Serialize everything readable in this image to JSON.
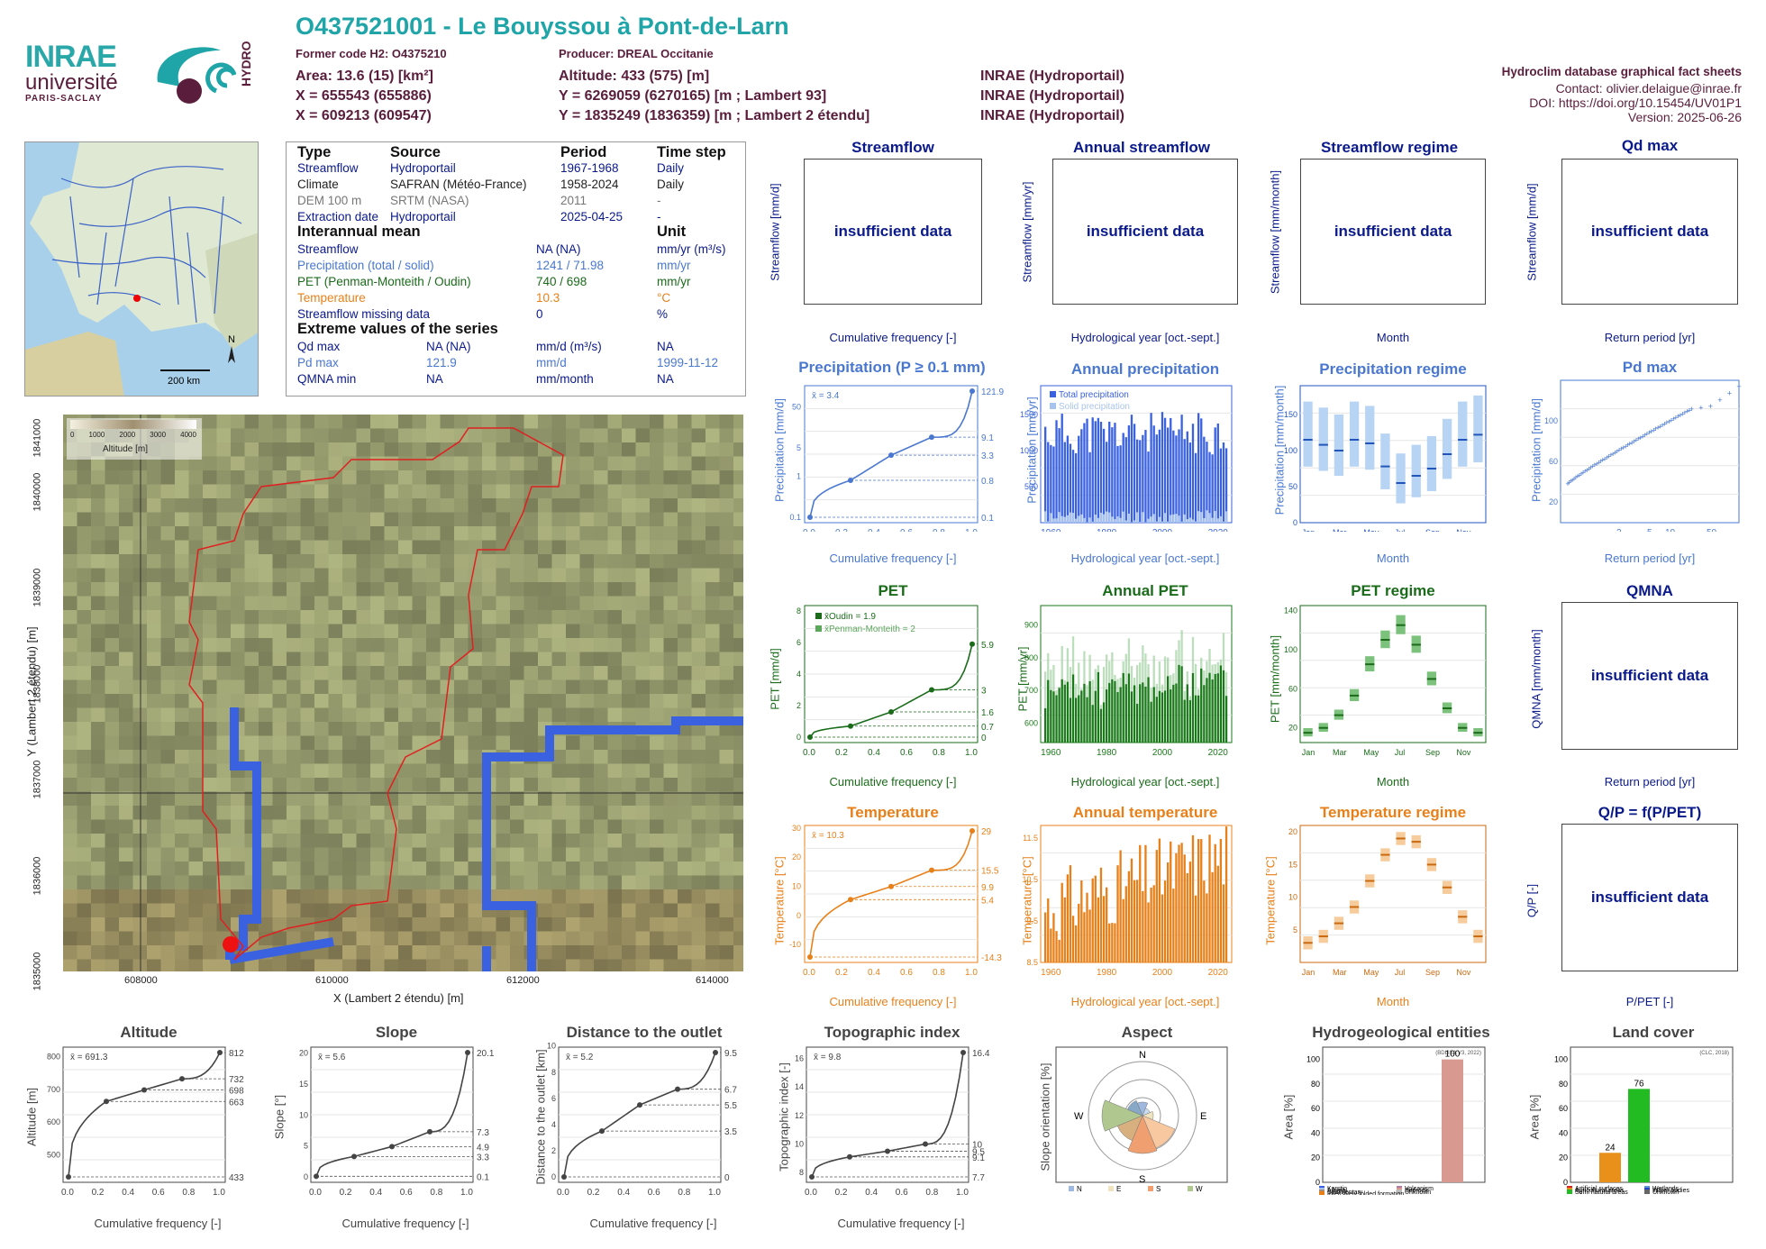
{
  "header": {
    "title": "O437521001 - Le Bouyssou à Pont-de-Larn",
    "former_code": "Former code H2: O4375210",
    "producer": "Producer: DREAL Occitanie",
    "area": "Area: 13.6 (15) [km²]",
    "x": "X = 655543 (655886)",
    "x2": "X = 609213 (609547)",
    "altitude": "Altitude: 433 (575) [m]",
    "y": "Y = 6269059 (6270165) [m ; Lambert 93]",
    "y2": "Y = 1835249 (1836359) [m ; Lambert 2 étendu]",
    "src1": "INRAE (Hydroportail)",
    "src2": "INRAE (Hydroportail)",
    "src3": "INRAE (Hydroportail)",
    "db": "Hydroclim database graphical fact sheets",
    "contact": "Contact: olivier.delaigue@inrae.fr",
    "doi": "DOI: https://doi.org/10.15454/UV01P1",
    "version": "Version: 2025-06-26"
  },
  "logos": {
    "inrae": "INRAE",
    "universite": "université",
    "paris": "PARIS-SACLAY",
    "hydro": "HYDRO"
  },
  "minimap": {
    "scale": "200 km",
    "north": "N"
  },
  "info": {
    "head": [
      "Type",
      "Source",
      "Period",
      "Time step"
    ],
    "rows": [
      [
        "Streamflow",
        "Hydroportail",
        "1967-1968",
        "Daily"
      ],
      [
        "Climate",
        "SAFRAN (Météo-France)",
        "1958-2024",
        "Daily"
      ],
      [
        "DEM 100 m",
        "SRTM (NASA)",
        "2011",
        "-"
      ],
      [
        "Extraction date",
        "Hydroportail",
        "2025-04-25",
        "-"
      ]
    ],
    "mean_head": "Interannual mean",
    "unit_head": "Unit",
    "means": [
      [
        "Streamflow",
        "NA (NA)",
        "mm/yr (m³/s)"
      ],
      [
        "Precipitation (total / solid)",
        "1241 / 71.98",
        "mm/yr"
      ],
      [
        "PET (Penman-Monteith / Oudin)",
        "740 / 698",
        "mm/yr"
      ],
      [
        "Temperature",
        "10.3",
        "°C"
      ],
      [
        "Streamflow missing data",
        "0",
        "%"
      ]
    ],
    "ext_head": "Extreme values of the series",
    "extremes": [
      [
        "Qd max",
        "NA (NA)",
        "mm/d (m³/s)",
        "NA"
      ],
      [
        "Pd max",
        "121.9",
        "mm/d",
        "1999-11-12"
      ],
      [
        "QMNA min",
        "NA",
        "mm/month",
        "NA"
      ]
    ]
  },
  "map": {
    "legend_title": "Altitude [m]",
    "legend_ticks": [
      "0",
      "1000",
      "2000",
      "3000",
      "4000"
    ],
    "xlabel": "X (Lambert 2 étendu) [m]",
    "ylabel": "Y (Lambert 2 étendu) [m]",
    "xticks": [
      "608000",
      "610000",
      "612000",
      "614000"
    ],
    "yticks": [
      "1835000",
      "1836000",
      "1837000",
      "1838000",
      "1839000",
      "1840000",
      "1841000"
    ]
  },
  "row1": {
    "titles": [
      "Streamflow",
      "Annual streamflow",
      "Streamflow regime",
      "Qd max"
    ],
    "ylabels": [
      "Streamflow [mm/d]",
      "Streamflow [mm/yr]",
      "Streamflow [mm/month]",
      "Streamflow [mm/d]"
    ],
    "xlabels": [
      "Cumulative frequency [-]",
      "Hydrological year [oct.-sept.]",
      "Month",
      "Return period [yr]"
    ],
    "insufficient": "insufficient data"
  },
  "row2": {
    "titles": [
      "Precipitation (P ≥ 0.1 mm)",
      "Annual precipitation",
      "Precipitation regime",
      "Pd max"
    ],
    "ylabels": [
      "Precipitation [mm/d]",
      "Precipitation [mm/yr]",
      "Precipitation [mm/month]",
      "Precipitation [mm/d]"
    ],
    "xlabels": [
      "Cumulative frequency [-]",
      "Hydrological year [oct.-sept.]",
      "Month",
      "Return period [yr]"
    ],
    "mean": "x̄ = 3.4",
    "legend_total": "Total precipitation",
    "legend_solid": "Solid precipitation"
  },
  "row3": {
    "titles": [
      "PET",
      "Annual PET",
      "PET regime",
      "QMNA"
    ],
    "ylabels": [
      "PET [mm/d]",
      "PET [mm/yr]",
      "PET [mm/month]",
      "QMNA [mm/month]"
    ],
    "xlabels": [
      "Cumulative frequency [-]",
      "Hydrological year [oct.-sept.]",
      "Month",
      "Return period [yr]"
    ],
    "mean_oudin": "x̄Oudin = 1.9",
    "mean_pm": "x̄Penman-Monteith = 2"
  },
  "row4": {
    "titles": [
      "Temperature",
      "Annual temperature",
      "Temperature regime",
      "Q/P = f(P/PET)"
    ],
    "ylabels": [
      "Temperature [°C]",
      "Temperature [°C]",
      "Temperature [°C]",
      "Q/P [-]"
    ],
    "xlabels": [
      "Cumulative frequency [-]",
      "Hydrological year [oct.-sept.]",
      "Month",
      "P/PET [-]"
    ],
    "mean": "x̄ = 10.3"
  },
  "row5": {
    "titles": [
      "Altitude",
      "Slope",
      "Distance to the outlet",
      "Topographic index",
      "Aspect",
      "Hydrogeological entities",
      "Land cover"
    ],
    "ylabels": [
      "Altitude [m]",
      "Slope [°]",
      "Distance to the outlet [km]",
      "Topographic index [-]",
      "Slope orientation [%]",
      "Area [%]",
      "Area [%]"
    ],
    "xlabel": "Cumulative frequency [-]",
    "means": [
      "x̄ = 691.3",
      "x̄ = 5.6",
      "x̄ = 5.2",
      "x̄ = 9.8"
    ],
    "hydro_src": "(BDLISA V3, 2022)",
    "land_src": "(CLC, 2018)",
    "hydro_legend": [
      "Karstic",
      "Volcanism",
      "Alluvial",
      "Bedrock",
      "Sedimentary",
      "Unknown",
      "Intensively folded formation"
    ],
    "land_legend": [
      "Artificial surfaces",
      "Wetlands",
      "Agricultural areas",
      "Water bodies",
      "Semi natural areas",
      "Unknown"
    ],
    "aspect_legend": [
      "N",
      "E",
      "S",
      "W",
      "NE",
      "SE",
      "SW",
      "NW"
    ]
  },
  "chart_data": [
    {
      "type": "line",
      "title": "Precipitation (P ≥ 0.1 mm)",
      "xlabel": "Cumulative frequency [-]",
      "ylabel": "Precipitation [mm/d]",
      "x": [
        0,
        0.25,
        0.5,
        0.75,
        1.0
      ],
      "y": [
        0.1,
        0.8,
        3.3,
        9.1,
        121.9
      ],
      "ylog": true
    },
    {
      "type": "bar",
      "title": "Annual precipitation",
      "xlabel": "Hydrological year [oct.-sept.]",
      "ylabel": "Precipitation [mm/yr]",
      "xlim": [
        1958,
        2024
      ],
      "ylim": [
        0,
        1900
      ],
      "series": [
        {
          "name": "Total precipitation"
        },
        {
          "name": "Solid precipitation"
        }
      ]
    },
    {
      "type": "bar",
      "title": "Precipitation regime",
      "xlabel": "Month",
      "ylabel": "Precipitation [mm/month]",
      "categories": [
        "Jan",
        "Feb",
        "Mar",
        "Apr",
        "May",
        "Jun",
        "Jul",
        "Aug",
        "Sep",
        "Oct",
        "Nov",
        "Dec"
      ],
      "values": [
        115,
        108,
        100,
        115,
        110,
        78,
        55,
        65,
        75,
        95,
        115,
        122
      ]
    },
    {
      "type": "scatter",
      "title": "Pd max",
      "xlabel": "Return period [yr]",
      "ylabel": "Precipitation [mm/d]"
    },
    {
      "type": "line",
      "title": "PET",
      "xlabel": "Cumulative frequency [-]",
      "ylabel": "PET [mm/d]",
      "x": [
        0,
        0.25,
        0.5,
        0.75,
        1.0
      ],
      "y": [
        0.0,
        0.7,
        1.6,
        3.0,
        5.9
      ]
    },
    {
      "type": "bar",
      "title": "Annual PET",
      "xlabel": "Hydrological year [oct.-sept.]",
      "ylabel": "PET [mm/yr]",
      "xlim": [
        1958,
        2024
      ],
      "ylim": [
        540,
        960
      ]
    },
    {
      "type": "bar",
      "title": "PET regime",
      "xlabel": "Month",
      "ylabel": "PET [mm/month]",
      "categories": [
        "Jan",
        "Feb",
        "Mar",
        "Apr",
        "May",
        "Jun",
        "Jul",
        "Aug",
        "Sep",
        "Oct",
        "Nov",
        "Dec"
      ],
      "values": [
        15,
        20,
        33,
        53,
        85,
        110,
        125,
        105,
        70,
        40,
        20,
        15
      ]
    },
    {
      "type": "line",
      "title": "Temperature",
      "xlabel": "Cumulative frequency [-]",
      "ylabel": "Temperature [°C]",
      "x": [
        0,
        0.25,
        0.5,
        0.75,
        1.0
      ],
      "y": [
        -14.3,
        5.4,
        9.9,
        15.5,
        29.0
      ]
    },
    {
      "type": "bar",
      "title": "Annual temperature",
      "xlabel": "Hydrological year [oct.-sept.]",
      "ylabel": "Temperature [°C]",
      "xlim": [
        1958,
        2024
      ],
      "ylim": [
        8.5,
        11.8
      ]
    },
    {
      "type": "bar",
      "title": "Temperature regime",
      "xlabel": "Month",
      "ylabel": "Temperature [°C]",
      "categories": [
        "Jan",
        "Feb",
        "Mar",
        "Apr",
        "May",
        "Jun",
        "Jul",
        "Aug",
        "Sep",
        "Oct",
        "Nov",
        "Dec"
      ],
      "values": [
        3,
        4,
        6,
        8.5,
        12.5,
        16.5,
        19,
        18.5,
        15,
        11.5,
        7,
        4
      ]
    },
    {
      "type": "line",
      "title": "Altitude",
      "x": [
        0,
        0.25,
        0.5,
        0.75,
        1.0
      ],
      "y": [
        433,
        663,
        698,
        732,
        812
      ]
    },
    {
      "type": "line",
      "title": "Slope",
      "x": [
        0,
        0.25,
        0.5,
        0.75,
        1.0
      ],
      "y": [
        0.1,
        3.3,
        4.9,
        7.3,
        20.1
      ]
    },
    {
      "type": "line",
      "title": "Distance to the outlet",
      "x": [
        0,
        0.25,
        0.5,
        0.75,
        1.0
      ],
      "y": [
        0.0,
        3.5,
        5.5,
        6.7,
        9.5
      ]
    },
    {
      "type": "line",
      "title": "Topographic index",
      "x": [
        0,
        0.25,
        0.5,
        0.75,
        1.0
      ],
      "y": [
        7.7,
        9.1,
        9.5,
        10.0,
        16.4
      ]
    },
    {
      "type": "bar",
      "title": "Hydrogeological entities",
      "categories": [
        "Bedrock"
      ],
      "values": [
        100
      ]
    },
    {
      "type": "bar",
      "title": "Land cover",
      "categories": [
        "Agricultural areas",
        "Semi natural areas"
      ],
      "values": [
        24,
        76
      ]
    }
  ],
  "colors": {
    "teal": "#1fa5a8",
    "maroon": "#5a1e3c",
    "navy": "#0a1a8a",
    "pblue": "#4a78d0",
    "green": "#1a6b1a",
    "orange": "#e8801a"
  }
}
